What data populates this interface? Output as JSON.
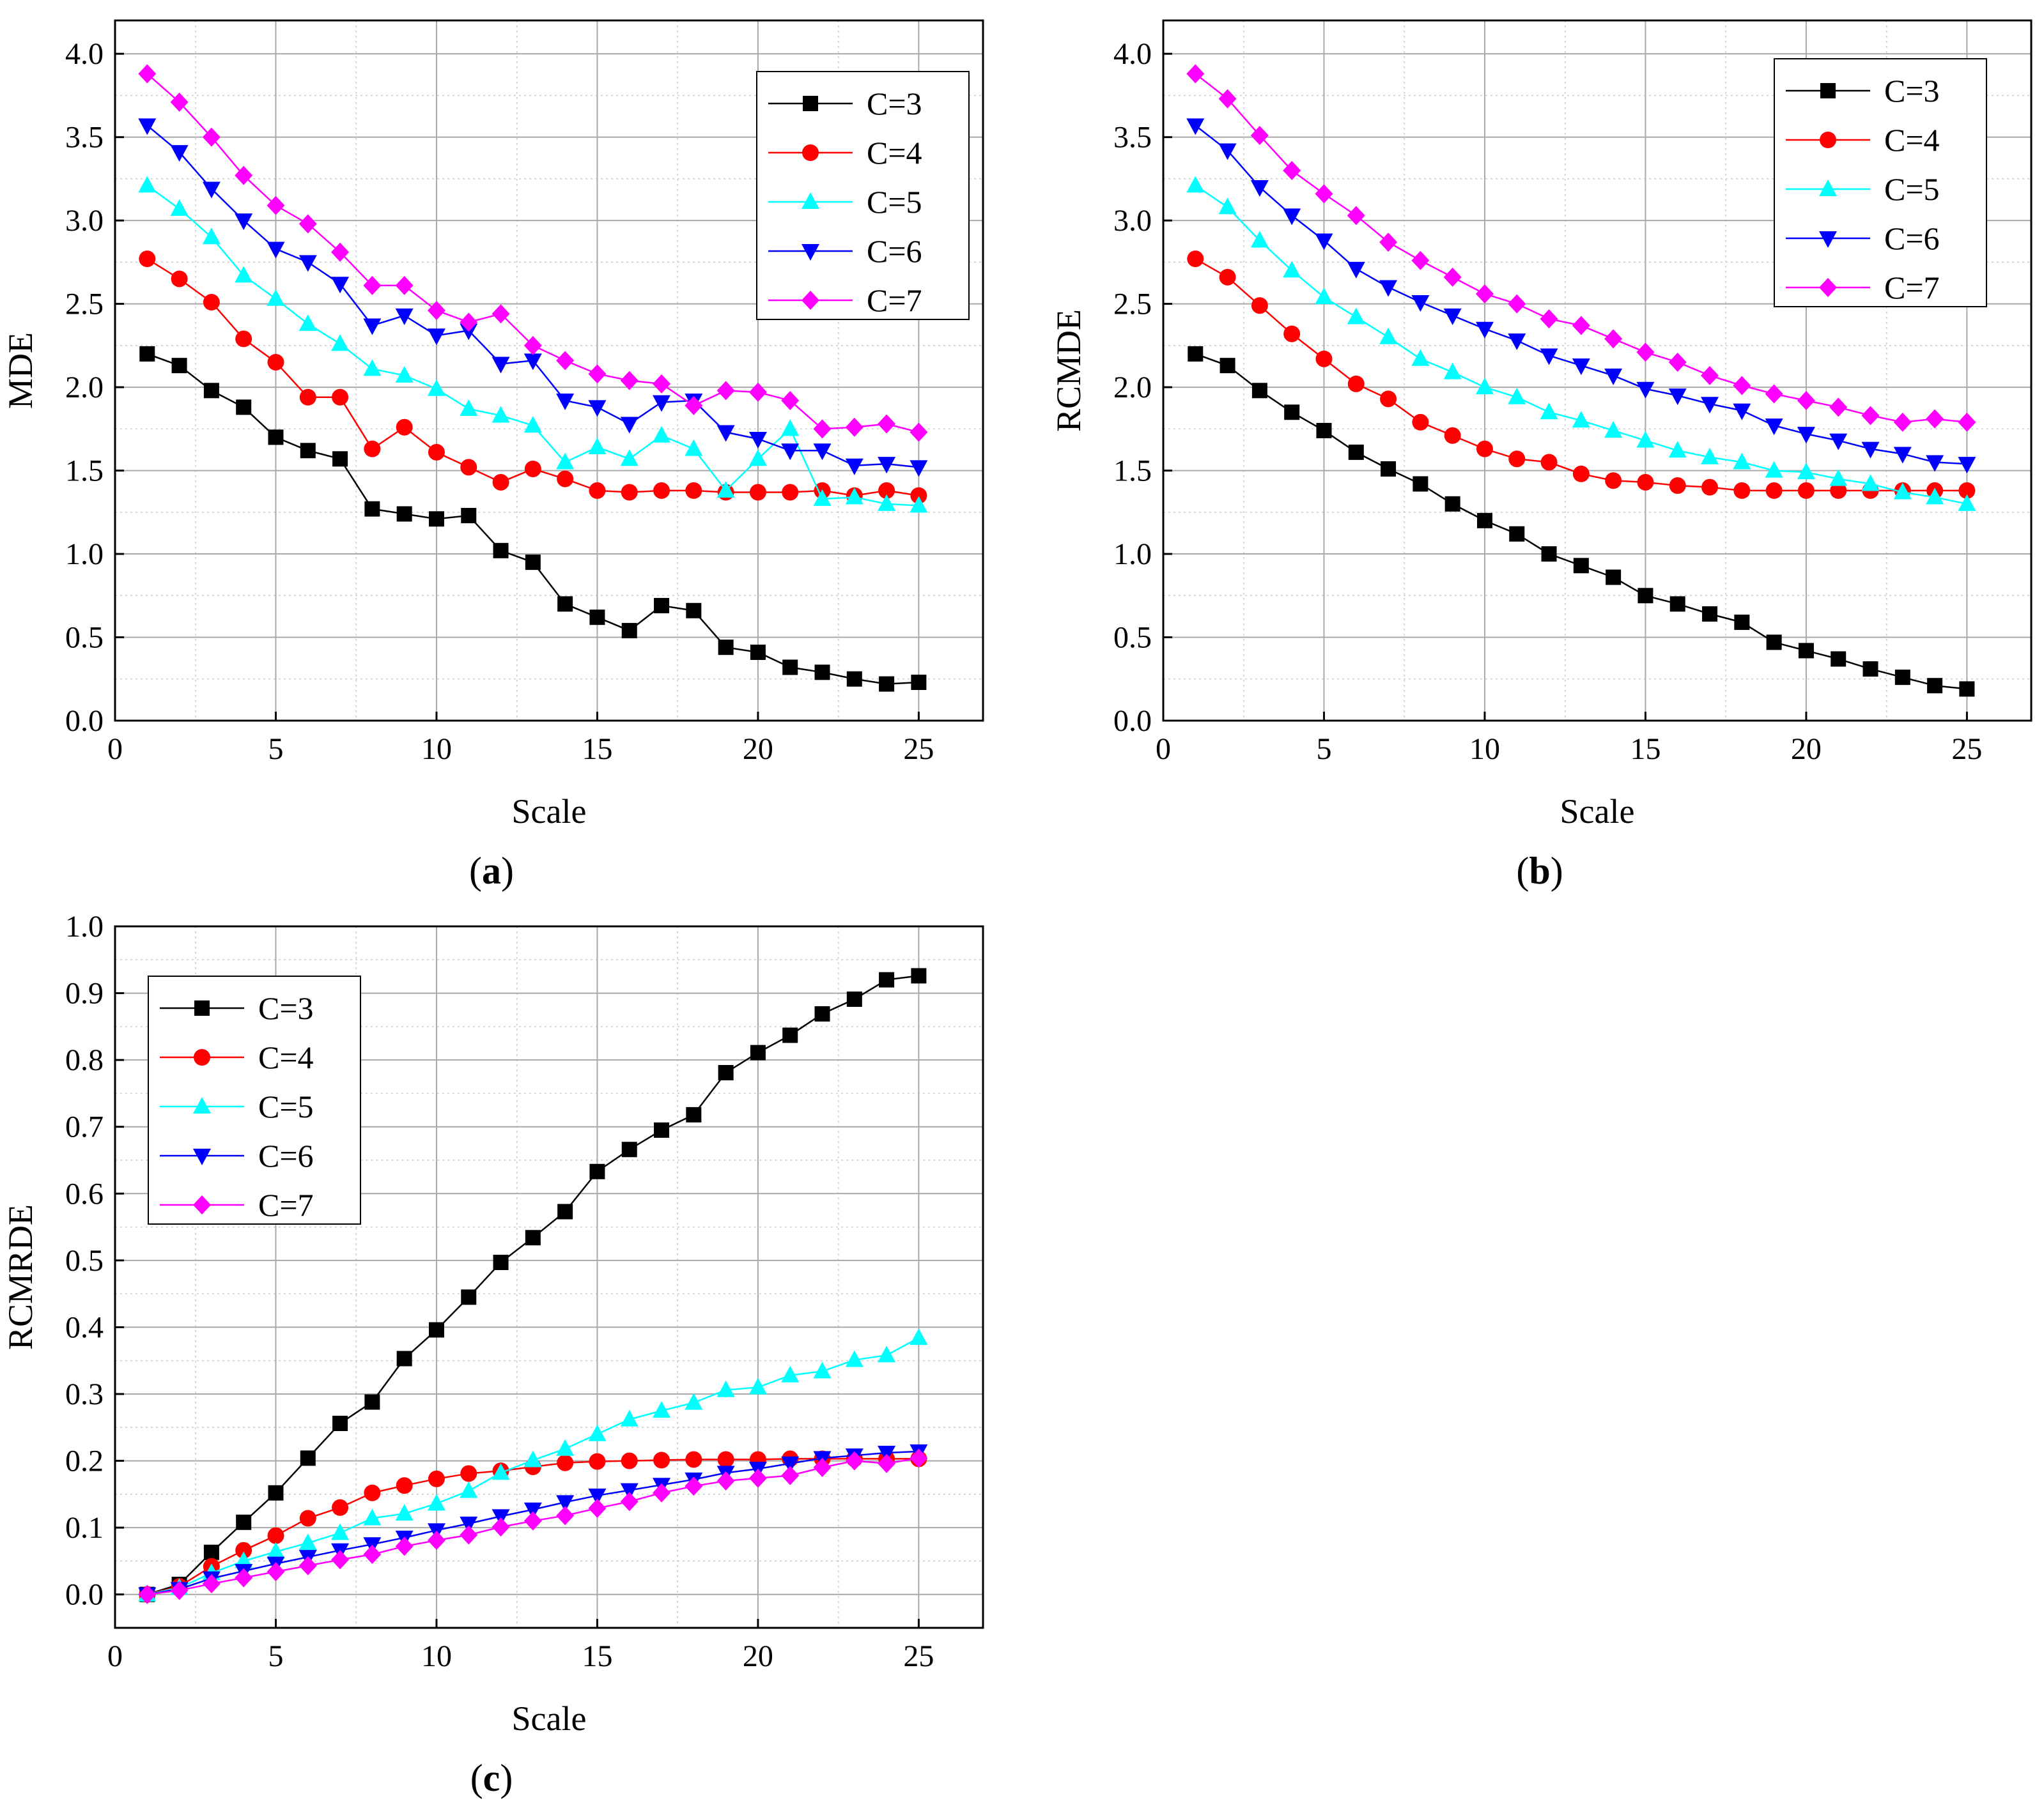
{
  "chart_data": [
    {
      "type": "line",
      "panel": "a",
      "panel_label_prefix": "(",
      "panel_label": "a",
      "panel_label_suffix": ")",
      "xlabel": "Scale",
      "ylabel": "MDE",
      "xlim": [
        0,
        27
      ],
      "ylim": [
        0,
        4.2
      ],
      "xticks": [
        "0",
        "5",
        "10",
        "15",
        "20",
        "25"
      ],
      "yticks": [
        "0.0",
        "0.5",
        "1.0",
        "1.5",
        "2.0",
        "2.5",
        "3.0",
        "3.5",
        "4.0"
      ],
      "x": [
        1,
        2,
        3,
        4,
        5,
        6,
        7,
        8,
        9,
        10,
        11,
        12,
        13,
        14,
        15,
        16,
        17,
        18,
        19,
        20,
        21,
        22,
        23,
        24,
        25
      ],
      "legend_position": "top-right",
      "series": [
        {
          "name": "C=3",
          "color": "#000000",
          "marker": "square",
          "values": [
            2.2,
            2.13,
            1.98,
            1.88,
            1.7,
            1.62,
            1.57,
            1.27,
            1.24,
            1.21,
            1.23,
            1.02,
            0.95,
            0.7,
            0.62,
            0.54,
            0.69,
            0.66,
            0.44,
            0.41,
            0.32,
            0.29,
            0.25,
            0.22,
            0.23
          ]
        },
        {
          "name": "C=4",
          "color": "#ff0000",
          "marker": "circle",
          "values": [
            2.77,
            2.65,
            2.51,
            2.29,
            2.15,
            1.94,
            1.94,
            1.63,
            1.76,
            1.61,
            1.52,
            1.43,
            1.51,
            1.45,
            1.38,
            1.37,
            1.38,
            1.38,
            1.37,
            1.37,
            1.37,
            1.38,
            1.35,
            1.38,
            1.35
          ]
        },
        {
          "name": "C=5",
          "color": "#00ffff",
          "marker": "triangle-up",
          "values": [
            3.21,
            3.07,
            2.9,
            2.67,
            2.53,
            2.38,
            2.26,
            2.11,
            2.07,
            1.99,
            1.87,
            1.83,
            1.77,
            1.55,
            1.64,
            1.57,
            1.71,
            1.63,
            1.38,
            1.57,
            1.75,
            1.33,
            1.34,
            1.3,
            1.29
          ]
        },
        {
          "name": "C=6",
          "color": "#0000ff",
          "marker": "triangle-down",
          "values": [
            3.57,
            3.41,
            3.19,
            3.0,
            2.83,
            2.75,
            2.62,
            2.37,
            2.43,
            2.31,
            2.34,
            2.14,
            2.16,
            1.92,
            1.88,
            1.78,
            1.91,
            1.92,
            1.73,
            1.69,
            1.62,
            1.62,
            1.53,
            1.54,
            1.52
          ]
        },
        {
          "name": "C=7",
          "color": "#ff00ff",
          "marker": "diamond",
          "values": [
            3.88,
            3.71,
            3.5,
            3.27,
            3.09,
            2.98,
            2.81,
            2.61,
            2.61,
            2.46,
            2.39,
            2.44,
            2.25,
            2.16,
            2.08,
            2.04,
            2.02,
            1.89,
            1.98,
            1.97,
            1.92,
            1.75,
            1.76,
            1.78,
            1.73
          ]
        }
      ]
    },
    {
      "type": "line",
      "panel": "b",
      "panel_label_prefix": "(",
      "panel_label": "b",
      "panel_label_suffix": ")",
      "xlabel": "Scale",
      "ylabel": "RCMDE",
      "xlim": [
        0,
        27
      ],
      "ylim": [
        0,
        4.2
      ],
      "xticks": [
        "0",
        "5",
        "10",
        "15",
        "20",
        "25"
      ],
      "yticks": [
        "0.0",
        "0.5",
        "1.0",
        "1.5",
        "2.0",
        "2.5",
        "3.0",
        "3.5",
        "4.0"
      ],
      "x": [
        1,
        2,
        3,
        4,
        5,
        6,
        7,
        8,
        9,
        10,
        11,
        12,
        13,
        14,
        15,
        16,
        17,
        18,
        19,
        20,
        21,
        22,
        23,
        24,
        25
      ],
      "legend_position": "top-right",
      "series": [
        {
          "name": "C=3",
          "color": "#000000",
          "marker": "square",
          "values": [
            2.2,
            2.13,
            1.98,
            1.85,
            1.74,
            1.61,
            1.51,
            1.42,
            1.3,
            1.2,
            1.12,
            1.0,
            0.93,
            0.86,
            0.75,
            0.7,
            0.64,
            0.59,
            0.47,
            0.42,
            0.37,
            0.31,
            0.26,
            0.21,
            0.19
          ]
        },
        {
          "name": "C=4",
          "color": "#ff0000",
          "marker": "circle",
          "values": [
            2.77,
            2.66,
            2.49,
            2.32,
            2.17,
            2.02,
            1.93,
            1.79,
            1.71,
            1.63,
            1.57,
            1.55,
            1.48,
            1.44,
            1.43,
            1.41,
            1.4,
            1.38,
            1.38,
            1.38,
            1.38,
            1.38,
            1.38,
            1.38,
            1.38
          ]
        },
        {
          "name": "C=5",
          "color": "#00ffff",
          "marker": "triangle-up",
          "values": [
            3.21,
            3.08,
            2.88,
            2.7,
            2.54,
            2.42,
            2.3,
            2.17,
            2.09,
            2.0,
            1.94,
            1.85,
            1.8,
            1.74,
            1.68,
            1.62,
            1.58,
            1.55,
            1.5,
            1.49,
            1.45,
            1.42,
            1.37,
            1.34,
            1.3
          ]
        },
        {
          "name": "C=6",
          "color": "#0000ff",
          "marker": "triangle-down",
          "values": [
            3.57,
            3.42,
            3.2,
            3.03,
            2.88,
            2.71,
            2.6,
            2.51,
            2.43,
            2.35,
            2.28,
            2.19,
            2.13,
            2.07,
            1.99,
            1.95,
            1.9,
            1.86,
            1.77,
            1.72,
            1.68,
            1.63,
            1.6,
            1.55,
            1.54
          ]
        },
        {
          "name": "C=7",
          "color": "#ff00ff",
          "marker": "diamond",
          "values": [
            3.88,
            3.73,
            3.51,
            3.3,
            3.16,
            3.03,
            2.87,
            2.76,
            2.66,
            2.56,
            2.5,
            2.41,
            2.37,
            2.29,
            2.21,
            2.15,
            2.07,
            2.01,
            1.96,
            1.92,
            1.88,
            1.83,
            1.79,
            1.81,
            1.79
          ]
        }
      ]
    },
    {
      "type": "line",
      "panel": "c",
      "panel_label_prefix": "(",
      "panel_label": "c",
      "panel_label_suffix": ")",
      "xlabel": "Scale",
      "ylabel": "RCMRDE",
      "xlim": [
        0,
        27
      ],
      "ylim": [
        -0.05,
        1.0
      ],
      "xticks": [
        "0",
        "5",
        "10",
        "15",
        "20",
        "25"
      ],
      "yticks": [
        "0.0",
        "0.1",
        "0.2",
        "0.3",
        "0.4",
        "0.5",
        "0.6",
        "0.7",
        "0.8",
        "0.9",
        "1.0"
      ],
      "x": [
        1,
        2,
        3,
        4,
        5,
        6,
        7,
        8,
        9,
        10,
        11,
        12,
        13,
        14,
        15,
        16,
        17,
        18,
        19,
        20,
        21,
        22,
        23,
        24,
        25
      ],
      "legend_position": "top-left",
      "series": [
        {
          "name": "C=3",
          "color": "#000000",
          "marker": "square",
          "values": [
            0.0,
            0.015,
            0.063,
            0.108,
            0.152,
            0.204,
            0.256,
            0.288,
            0.353,
            0.396,
            0.445,
            0.497,
            0.534,
            0.573,
            0.633,
            0.666,
            0.695,
            0.718,
            0.781,
            0.811,
            0.837,
            0.869,
            0.891,
            0.92,
            0.926
          ]
        },
        {
          "name": "C=4",
          "color": "#ff0000",
          "marker": "circle",
          "values": [
            0.0,
            0.012,
            0.042,
            0.066,
            0.088,
            0.114,
            0.13,
            0.152,
            0.163,
            0.173,
            0.181,
            0.185,
            0.191,
            0.197,
            0.199,
            0.2,
            0.201,
            0.202,
            0.202,
            0.202,
            0.203,
            0.203,
            0.203,
            0.203,
            0.203
          ]
        },
        {
          "name": "C=5",
          "color": "#00ffff",
          "marker": "triangle-up",
          "values": [
            0.0,
            0.01,
            0.032,
            0.05,
            0.064,
            0.077,
            0.092,
            0.114,
            0.121,
            0.136,
            0.155,
            0.182,
            0.201,
            0.218,
            0.24,
            0.262,
            0.275,
            0.287,
            0.306,
            0.31,
            0.328,
            0.334,
            0.351,
            0.358,
            0.384
          ]
        },
        {
          "name": "C=6",
          "color": "#0000ff",
          "marker": "triangle-down",
          "values": [
            0.0,
            0.008,
            0.024,
            0.035,
            0.046,
            0.056,
            0.066,
            0.075,
            0.085,
            0.096,
            0.106,
            0.117,
            0.127,
            0.138,
            0.148,
            0.156,
            0.164,
            0.172,
            0.182,
            0.188,
            0.196,
            0.204,
            0.208,
            0.212,
            0.214
          ]
        },
        {
          "name": "C=7",
          "color": "#ff00ff",
          "marker": "diamond",
          "values": [
            0.0,
            0.006,
            0.016,
            0.025,
            0.034,
            0.043,
            0.052,
            0.06,
            0.072,
            0.081,
            0.089,
            0.101,
            0.11,
            0.118,
            0.129,
            0.139,
            0.152,
            0.162,
            0.17,
            0.174,
            0.178,
            0.19,
            0.2,
            0.196,
            0.204
          ]
        }
      ]
    }
  ]
}
